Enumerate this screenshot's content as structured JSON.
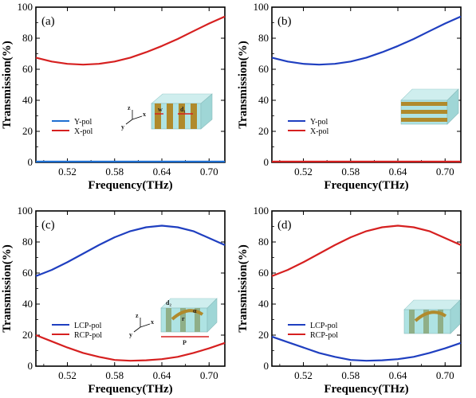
{
  "chart_data": [
    {
      "type": "line",
      "panel_label": "(a)",
      "xlabel": "Frequency(THz)",
      "ylabel": "Transmission(%)",
      "xlim": [
        0.48,
        0.72
      ],
      "ylim": [
        0,
        100
      ],
      "xticks": [
        "0.52",
        "0.58",
        "0.64",
        "0.70"
      ],
      "yticks": [
        "0",
        "20",
        "40",
        "60",
        "80",
        "100"
      ],
      "legend": {
        "position": "lower-left"
      },
      "series": [
        {
          "name": "Y-pol",
          "color": "#1f6fd1",
          "x": [
            0.48,
            0.5,
            0.52,
            0.54,
            0.56,
            0.58,
            0.6,
            0.62,
            0.64,
            0.66,
            0.68,
            0.7,
            0.72
          ],
          "y": [
            0.5,
            0.5,
            0.5,
            0.5,
            0.5,
            0.5,
            0.5,
            0.5,
            0.5,
            0.5,
            0.5,
            0.5,
            0.5
          ]
        },
        {
          "name": "X-pol",
          "color": "#d62020",
          "x": [
            0.48,
            0.5,
            0.52,
            0.54,
            0.56,
            0.58,
            0.6,
            0.62,
            0.64,
            0.66,
            0.68,
            0.7,
            0.72
          ],
          "y": [
            67.5,
            65,
            63.5,
            63,
            63.5,
            65,
            67.5,
            71,
            75,
            79.5,
            84.5,
            89.5,
            94
          ]
        }
      ],
      "inset": {
        "labels": [
          "w",
          "d₁"
        ],
        "axes": [
          "z",
          "x",
          "y"
        ]
      }
    },
    {
      "type": "line",
      "panel_label": "(b)",
      "xlabel": "Frequency(THz)",
      "ylabel": "Transmission(%)",
      "xlim": [
        0.48,
        0.72
      ],
      "ylim": [
        0,
        100
      ],
      "xticks": [
        "0.52",
        "0.58",
        "0.64",
        "0.70"
      ],
      "yticks": [
        "0",
        "20",
        "40",
        "60",
        "80",
        "100"
      ],
      "legend": {
        "position": "lower-left"
      },
      "series": [
        {
          "name": "Y-pol",
          "color": "#1f3fc0",
          "x": [
            0.48,
            0.5,
            0.52,
            0.54,
            0.56,
            0.58,
            0.6,
            0.62,
            0.64,
            0.66,
            0.68,
            0.7,
            0.72
          ],
          "y": [
            67.5,
            65,
            63.5,
            63,
            63.5,
            65,
            67.5,
            71,
            75,
            79.5,
            84.5,
            89.5,
            94
          ]
        },
        {
          "name": "X-pol",
          "color": "#d62020",
          "x": [
            0.48,
            0.5,
            0.52,
            0.54,
            0.56,
            0.58,
            0.6,
            0.62,
            0.64,
            0.66,
            0.68,
            0.7,
            0.72
          ],
          "y": [
            0.5,
            0.5,
            0.5,
            0.5,
            0.5,
            0.5,
            0.5,
            0.5,
            0.5,
            0.5,
            0.5,
            0.5,
            0.5
          ]
        }
      ],
      "inset": {
        "labels": [],
        "axes": []
      }
    },
    {
      "type": "line",
      "panel_label": "(c)",
      "xlabel": "Frequency(THz)",
      "ylabel": "Transmission(%)",
      "xlim": [
        0.48,
        0.72
      ],
      "ylim": [
        0,
        100
      ],
      "xticks": [
        "0.52",
        "0.58",
        "0.64",
        "0.70"
      ],
      "yticks": [
        "0",
        "20",
        "40",
        "60",
        "80",
        "100"
      ],
      "legend": {
        "position": "lower-left"
      },
      "series": [
        {
          "name": "LCP-pol",
          "color": "#1f3fc0",
          "x": [
            0.48,
            0.5,
            0.52,
            0.54,
            0.56,
            0.58,
            0.6,
            0.62,
            0.64,
            0.66,
            0.68,
            0.7,
            0.72
          ],
          "y": [
            58,
            62,
            67,
            72.5,
            78,
            83,
            87,
            89.5,
            90.5,
            89.5,
            87,
            82.5,
            78
          ]
        },
        {
          "name": "RCP-pol",
          "color": "#d62020",
          "x": [
            0.48,
            0.5,
            0.52,
            0.54,
            0.56,
            0.58,
            0.6,
            0.62,
            0.64,
            0.66,
            0.68,
            0.7,
            0.72
          ],
          "y": [
            20,
            16,
            12,
            8.5,
            6,
            4,
            3.5,
            3.8,
            4.5,
            6,
            8.5,
            11.5,
            15
          ]
        }
      ],
      "inset": {
        "labels": [
          "d₂",
          "r",
          "α",
          "P"
        ],
        "axes": [
          "z",
          "x",
          "y"
        ]
      }
    },
    {
      "type": "line",
      "panel_label": "(d)",
      "xlabel": "Frequency(THz)",
      "ylabel": "Transmission(%)",
      "xlim": [
        0.48,
        0.72
      ],
      "ylim": [
        0,
        100
      ],
      "xticks": [
        "0.52",
        "0.58",
        "0.64",
        "0.70"
      ],
      "yticks": [
        "0",
        "20",
        "40",
        "60",
        "80",
        "100"
      ],
      "legend": {
        "position": "lower-left"
      },
      "series": [
        {
          "name": "LCP-pol",
          "color": "#1f3fc0",
          "x": [
            0.48,
            0.5,
            0.52,
            0.54,
            0.56,
            0.58,
            0.6,
            0.62,
            0.64,
            0.66,
            0.68,
            0.7,
            0.72
          ],
          "y": [
            19,
            15.5,
            12,
            8.5,
            6,
            4,
            3.5,
            3.8,
            4.5,
            6,
            8.5,
            11.5,
            15
          ]
        },
        {
          "name": "RCP-pol",
          "color": "#d62020",
          "x": [
            0.48,
            0.5,
            0.52,
            0.54,
            0.56,
            0.58,
            0.6,
            0.62,
            0.64,
            0.66,
            0.68,
            0.7,
            0.72
          ],
          "y": [
            58,
            62,
            67,
            72.5,
            78,
            83,
            87,
            89.5,
            90.5,
            89.5,
            87,
            82.5,
            78
          ]
        }
      ],
      "inset": {
        "labels": [],
        "axes": []
      }
    }
  ]
}
